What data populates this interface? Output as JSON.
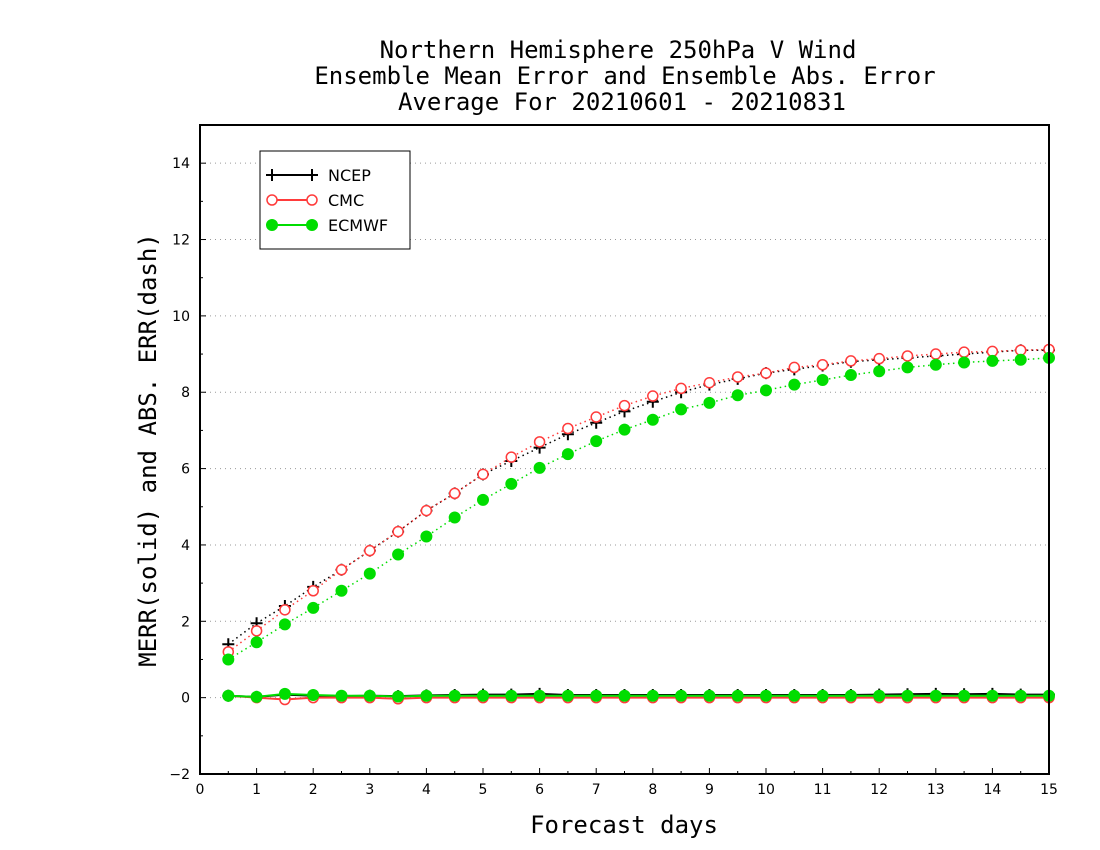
{
  "chart_data": {
    "type": "line",
    "title": [
      "Northern Hemisphere 250hPa V Wind",
      "Ensemble Mean Error and Ensemble Abs. Error",
      "Average For 20210601 - 20210831"
    ],
    "xlabel": "Forecast days",
    "ylabel": "MERR(solid) and ABS. ERR(dash)",
    "xlim": [
      0,
      15
    ],
    "ylim": [
      -2,
      15
    ],
    "xticks": [
      "0",
      "1",
      "2",
      "3",
      "4",
      "5",
      "6",
      "7",
      "8",
      "9",
      "10",
      "11",
      "12",
      "13",
      "14",
      "15"
    ],
    "yticks": [
      "−2",
      "0",
      "2",
      "4",
      "6",
      "8",
      "10",
      "12",
      "14"
    ],
    "grid": "horizontal dotted at even values",
    "legend_position": "top-left",
    "x": [
      0.5,
      1.0,
      1.5,
      2.0,
      2.5,
      3.0,
      3.5,
      4.0,
      4.5,
      5.0,
      5.5,
      6.0,
      6.5,
      7.0,
      7.5,
      8.0,
      8.5,
      9.0,
      9.5,
      10.0,
      10.5,
      11.0,
      11.5,
      12.0,
      12.5,
      13.0,
      13.5,
      14.0,
      14.5,
      15.0
    ],
    "series": [
      {
        "name": "NCEP",
        "color": "#000000",
        "marker": "plus",
        "merr": [
          0.05,
          0.02,
          0.08,
          0.05,
          0.04,
          0.05,
          0.04,
          0.06,
          0.07,
          0.08,
          0.08,
          0.1,
          0.07,
          0.07,
          0.07,
          0.07,
          0.07,
          0.07,
          0.07,
          0.07,
          0.07,
          0.07,
          0.07,
          0.08,
          0.09,
          0.1,
          0.09,
          0.1,
          0.08,
          0.08
        ],
        "abs_err": [
          1.4,
          1.95,
          2.4,
          2.9,
          3.35,
          3.85,
          4.35,
          4.9,
          5.35,
          5.85,
          6.2,
          6.55,
          6.9,
          7.2,
          7.5,
          7.75,
          8.0,
          8.2,
          8.35,
          8.5,
          8.6,
          8.7,
          8.8,
          8.85,
          8.9,
          8.95,
          9.0,
          9.05,
          9.1,
          9.1
        ]
      },
      {
        "name": "CMC",
        "color": "#ff3b3b",
        "marker": "open-circle",
        "merr": [
          0.05,
          0.0,
          -0.05,
          0.0,
          0.0,
          0.0,
          -0.03,
          0.0,
          0.0,
          0.0,
          0.0,
          0.0,
          0.0,
          0.0,
          0.0,
          0.0,
          0.0,
          0.0,
          0.0,
          0.0,
          0.0,
          0.0,
          0.0,
          0.0,
          0.0,
          0.0,
          0.0,
          0.0,
          0.0,
          0.0
        ],
        "abs_err": [
          1.2,
          1.75,
          2.3,
          2.8,
          3.35,
          3.85,
          4.35,
          4.9,
          5.35,
          5.85,
          6.3,
          6.7,
          7.05,
          7.35,
          7.65,
          7.9,
          8.1,
          8.25,
          8.4,
          8.5,
          8.65,
          8.72,
          8.82,
          8.88,
          8.95,
          9.0,
          9.05,
          9.07,
          9.1,
          9.12
        ]
      },
      {
        "name": "ECMWF",
        "color": "#00dd00",
        "marker": "filled-circle",
        "merr": [
          0.05,
          0.02,
          0.1,
          0.07,
          0.05,
          0.05,
          0.03,
          0.05,
          0.05,
          0.05,
          0.05,
          0.05,
          0.05,
          0.05,
          0.05,
          0.05,
          0.05,
          0.05,
          0.05,
          0.05,
          0.05,
          0.05,
          0.05,
          0.05,
          0.05,
          0.05,
          0.05,
          0.05,
          0.05,
          0.05
        ],
        "abs_err": [
          1.0,
          1.45,
          1.92,
          2.35,
          2.8,
          3.25,
          3.75,
          4.22,
          4.72,
          5.18,
          5.6,
          6.02,
          6.38,
          6.72,
          7.02,
          7.28,
          7.55,
          7.72,
          7.92,
          8.05,
          8.2,
          8.32,
          8.45,
          8.55,
          8.65,
          8.72,
          8.78,
          8.82,
          8.85,
          8.9
        ]
      }
    ]
  }
}
